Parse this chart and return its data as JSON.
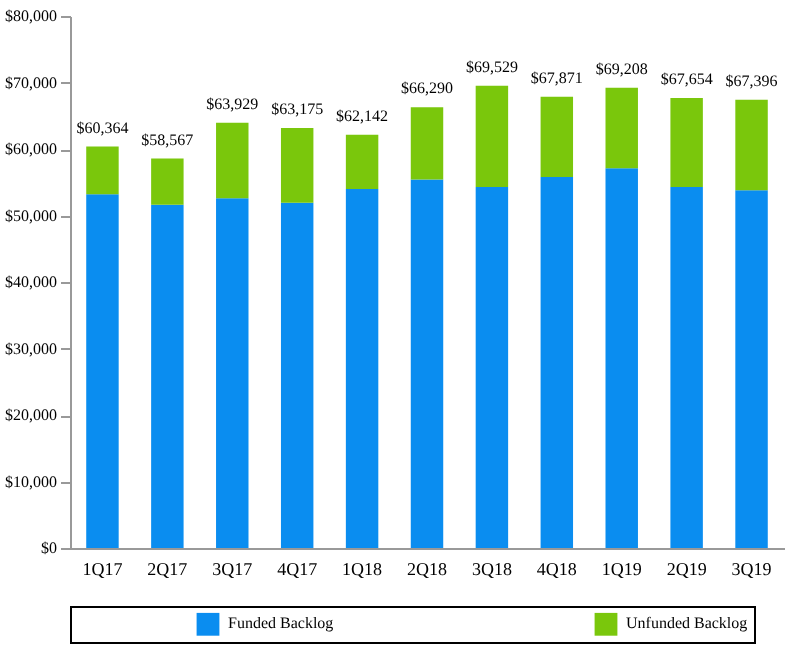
{
  "chart_data": {
    "type": "bar",
    "stacked": true,
    "categories": [
      "1Q17",
      "2Q17",
      "3Q17",
      "4Q17",
      "1Q18",
      "2Q18",
      "3Q18",
      "4Q18",
      "1Q19",
      "2Q19",
      "3Q19"
    ],
    "series": [
      {
        "name": "Funded Backlog",
        "color": "#0a8df0",
        "values": [
          53200,
          51600,
          52600,
          51900,
          54000,
          55400,
          54300,
          55800,
          57100,
          54300,
          53800
        ]
      },
      {
        "name": "Unfunded Backlog",
        "color": "#7ac70c",
        "values": [
          7164,
          6967,
          11329,
          11275,
          8142,
          10890,
          15229,
          12071,
          12108,
          13354,
          13596
        ]
      }
    ],
    "totals": [
      "$60,364",
      "$58,567",
      "$63,929",
      "$63,175",
      "$62,142",
      "$66,290",
      "$69,529",
      "$67,871",
      "$69,208",
      "$67,654",
      "$67,396"
    ],
    "ylim": [
      0,
      80000
    ],
    "yticks": [
      {
        "value": 0,
        "label": "$0"
      },
      {
        "value": 10000,
        "label": "$10,000"
      },
      {
        "value": 20000,
        "label": "$20,000"
      },
      {
        "value": 30000,
        "label": "$30,000"
      },
      {
        "value": 40000,
        "label": "$40,000"
      },
      {
        "value": 50000,
        "label": "$50,000"
      },
      {
        "value": 60000,
        "label": "$60,000"
      },
      {
        "value": 70000,
        "label": "$70,000"
      },
      {
        "value": 80000,
        "label": "$80,000"
      }
    ],
    "grid": false,
    "legend": "bottom"
  }
}
